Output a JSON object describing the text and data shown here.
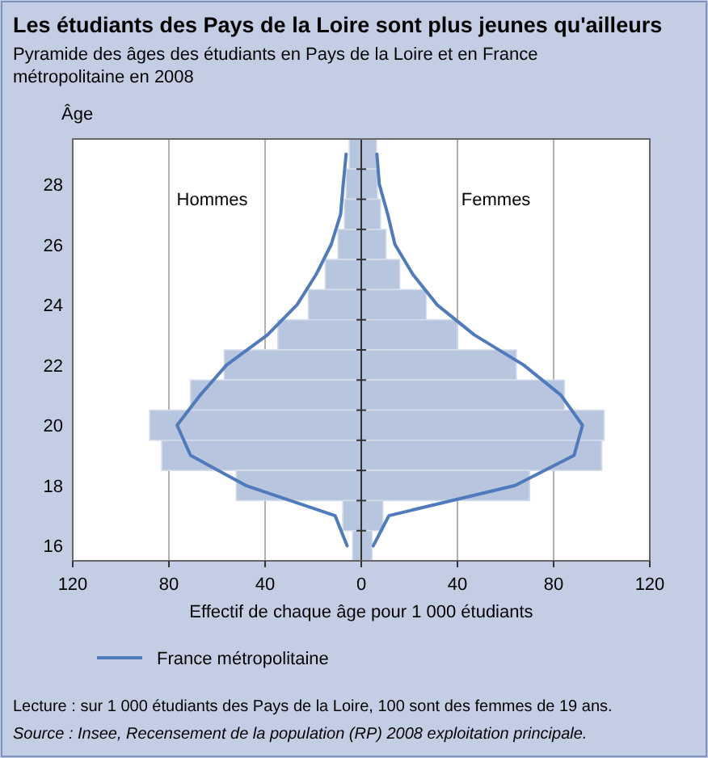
{
  "chart_data": {
    "type": "bar",
    "orientation": "horizontal",
    "title": "Les étudiants des Pays de la Loire sont plus jeunes qu'ailleurs",
    "subtitle": "Pyramide des âges des étudiants en Pays de la Loire et en France métropolitaine en 2008",
    "ylabel": "Âge",
    "xlabel": "Effectif de chaque âge pour 1 000 étudiants",
    "categories": [
      null,
      "28",
      null,
      "26",
      null,
      "24",
      null,
      "22",
      null,
      "20",
      null,
      "18",
      null,
      "16"
    ],
    "series": [
      {
        "color": "#b8c5df",
        "values": [
          -5,
          -6.3,
          -7,
          -9.7,
          -15,
          -22,
          -34.7,
          -57,
          -71,
          -88,
          -83,
          -52,
          -7.7,
          -3.6
        ]
      },
      {
        "color": "#b8c5df",
        "values": [
          6.3,
          6.7,
          8,
          10.3,
          16,
          27,
          40,
          64.5,
          84.5,
          101,
          100,
          70,
          9,
          4.5
        ]
      },
      {
        "name": "France métropolitaine",
        "type": "line",
        "color": "#4f7bbd",
        "values": [
          -6.3,
          -7.5,
          -8.6,
          -12.5,
          -18.8,
          -26.7,
          -39,
          -56,
          -67,
          -76.6,
          -71,
          -48,
          -10.9,
          -5.9
        ]
      },
      {
        "type": "line",
        "color": "#4f7bbd",
        "values": [
          6.5,
          7.5,
          11,
          14,
          21.5,
          31.5,
          47,
          67.5,
          83,
          92,
          88.5,
          64,
          11.5,
          5
        ]
      }
    ],
    "xlim": [
      -120,
      120
    ],
    "xticks": [
      {
        "value": -120,
        "label": "120"
      },
      {
        "value": -80,
        "label": "80"
      },
      {
        "value": -40,
        "label": "40"
      },
      0,
      40,
      80,
      120
    ],
    "grid": "x",
    "legend": "bottom",
    "stacked": true,
    "annotations": [
      "Hommes",
      "Femmes",
      "Lecture : sur 1 000 étudiants des Pays de la Loire, 100 sont des femmes de 19 ans.",
      "Source : Insee, Recensement de la population (RP) 2008 exploitation principale."
    ]
  }
}
